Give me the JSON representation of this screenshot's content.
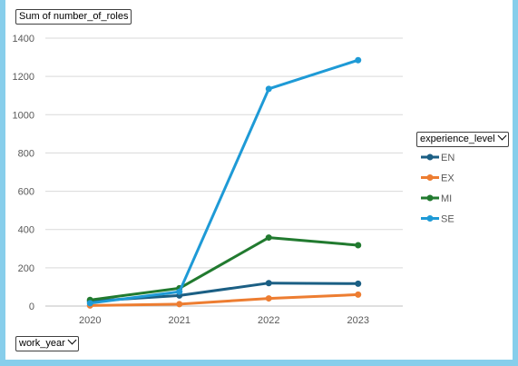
{
  "value_button": {
    "label": "Sum of number_of_roles"
  },
  "legend_button": {
    "label": "experience_level"
  },
  "axis_button": {
    "label": "work_year"
  },
  "chart_data": {
    "type": "line",
    "x": [
      "2020",
      "2021",
      "2022",
      "2023"
    ],
    "ylim": [
      0,
      1400
    ],
    "yticks": [
      0,
      200,
      400,
      600,
      800,
      1000,
      1200,
      1400
    ],
    "grid": true,
    "legend_position": "right",
    "series": [
      {
        "name": "EN",
        "color": "#1b5f84",
        "values": [
          25,
          55,
          120,
          117
        ]
      },
      {
        "name": "EX",
        "color": "#ed7d31",
        "values": [
          3,
          10,
          40,
          60
        ]
      },
      {
        "name": "MI",
        "color": "#217a2f",
        "values": [
          32,
          93,
          358,
          318
        ]
      },
      {
        "name": "SE",
        "color": "#1e9ad6",
        "values": [
          15,
          75,
          1135,
          1285
        ]
      }
    ]
  }
}
